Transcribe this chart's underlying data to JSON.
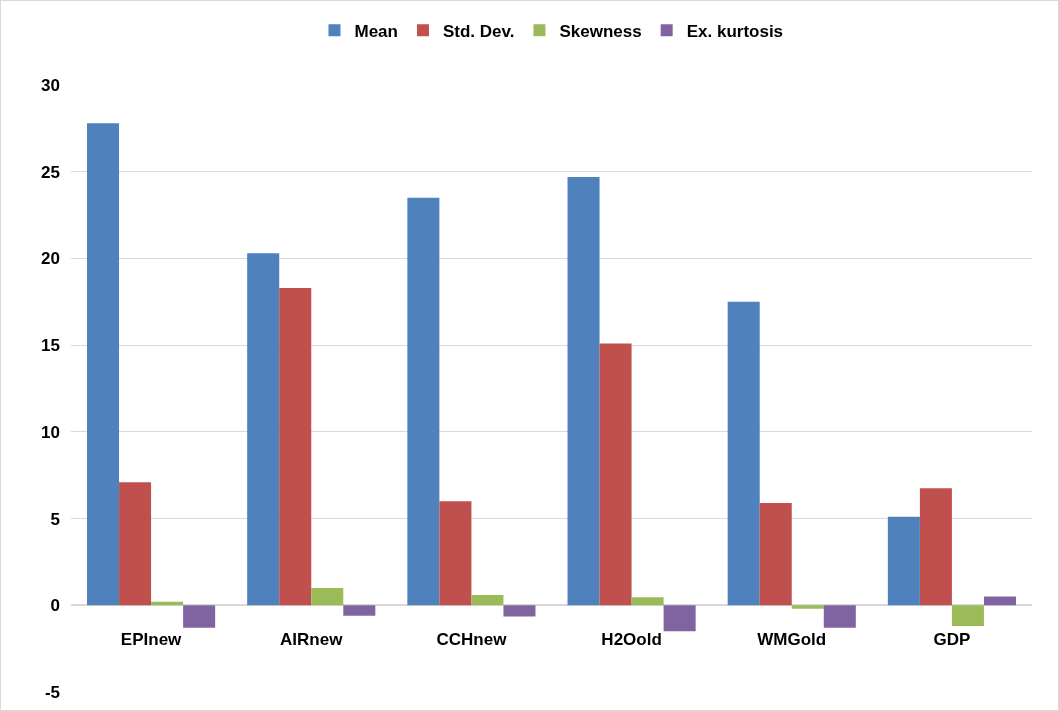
{
  "chart_data": {
    "type": "bar",
    "categories": [
      "EPInew",
      "AIRnew",
      "CCHnew",
      "H2Oold",
      "WMGold",
      "GDP"
    ],
    "series": [
      {
        "name": "Mean",
        "color": "#4f81bd",
        "values": [
          27.8,
          20.3,
          23.5,
          24.7,
          17.5,
          5.1
        ]
      },
      {
        "name": "Std. Dev.",
        "color": "#c0504d",
        "values": [
          7.1,
          18.3,
          6.0,
          15.1,
          5.9,
          6.75
        ]
      },
      {
        "name": "Skewness",
        "color": "#9bbb59",
        "values": [
          0.2,
          1.0,
          0.6,
          0.47,
          -0.2,
          -1.2
        ]
      },
      {
        "name": "Ex. kurtosis",
        "color": "#8064a2",
        "values": [
          -1.3,
          -0.6,
          -0.65,
          -1.5,
          -1.3,
          0.5
        ]
      }
    ],
    "ylim": [
      -5,
      30
    ],
    "yticks": [
      -5,
      0,
      5,
      10,
      15,
      20,
      25,
      30
    ],
    "grid": "y",
    "legend": "top"
  }
}
